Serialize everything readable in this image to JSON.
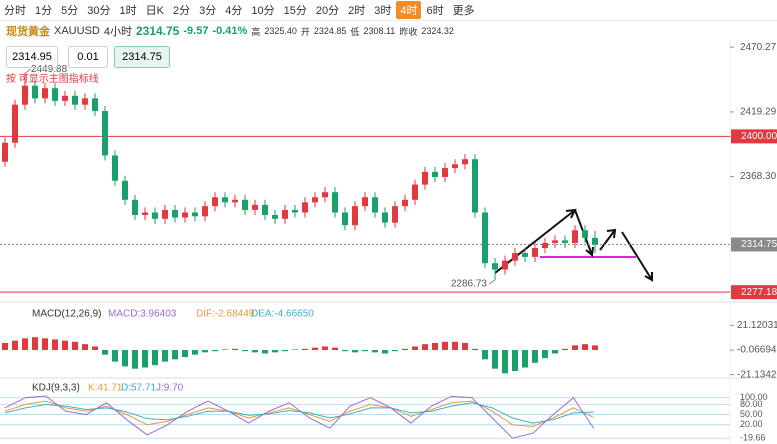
{
  "toolbar": {
    "intervals": [
      "分时",
      "1分",
      "5分",
      "30分",
      "1时",
      "日K",
      "2分",
      "3分",
      "4分",
      "10分",
      "15分",
      "20分",
      "2时",
      "3时",
      "4时",
      "6时",
      "更多"
    ],
    "active": "4时"
  },
  "header": {
    "name": "现货黄金",
    "symbol": "XAUUSD",
    "period": "4小时",
    "price": "2314.75",
    "change": "-9.57",
    "change_pct": "-0.41%",
    "high_label": "高",
    "high": "2325.40",
    "open_label": "开",
    "open": "2324.85",
    "low_label": "低",
    "low": "2308.11",
    "prev_label": "昨收",
    "prev": "2324.32"
  },
  "order": {
    "bid": "2314.95",
    "lot": "0.01",
    "ask": "2314.75"
  },
  "hint": "按 可显示主图指标线",
  "chart_data": {
    "type": "candlestick",
    "up_color": "#e0393e",
    "down_color": "#1aa06a",
    "ylim": [
      2271,
      2476
    ],
    "yticks": [
      2470.27,
      2419.29,
      {
        "value": 2368.3,
        "label": "2368.30"
      }
    ],
    "levels": [
      {
        "value": 2400,
        "label": "2400.00",
        "color": "#e0393e"
      },
      {
        "value": 2277.18,
        "label": "2277.18",
        "color": "#e0393e"
      }
    ],
    "last": {
      "value": 2314.75,
      "label": "2314.75",
      "color": "#8a8a8a"
    },
    "annotations": [
      {
        "value": 2449.88,
        "label": "2449.88"
      },
      {
        "value": 2286.73,
        "label": "2286.73"
      }
    ],
    "candles": [
      [
        2380,
        2399,
        2376,
        2395
      ],
      [
        2395,
        2429,
        2391,
        2425
      ],
      [
        2425,
        2449.88,
        2421,
        2440
      ],
      [
        2440,
        2444,
        2426,
        2430
      ],
      [
        2430,
        2442,
        2426,
        2438
      ],
      [
        2438,
        2442,
        2424,
        2428
      ],
      [
        2428,
        2436,
        2424,
        2432
      ],
      [
        2432,
        2436,
        2421,
        2425
      ],
      [
        2425,
        2434,
        2421,
        2430
      ],
      [
        2430,
        2434,
        2416,
        2420
      ],
      [
        2420,
        2424,
        2381,
        2385
      ],
      [
        2385,
        2389,
        2361,
        2365
      ],
      [
        2365,
        2369,
        2346,
        2350
      ],
      [
        2350,
        2354,
        2334,
        2338
      ],
      [
        2338,
        2344,
        2334,
        2340
      ],
      [
        2340,
        2344,
        2331,
        2335
      ],
      [
        2335,
        2346,
        2331,
        2342
      ],
      [
        2342,
        2346,
        2332,
        2336
      ],
      [
        2336,
        2344,
        2332,
        2340
      ],
      [
        2340,
        2344,
        2333,
        2337
      ],
      [
        2337,
        2349,
        2333,
        2345
      ],
      [
        2345,
        2356,
        2341,
        2352
      ],
      [
        2352,
        2356,
        2344,
        2348
      ],
      [
        2348,
        2354,
        2344,
        2350
      ],
      [
        2350,
        2354,
        2338,
        2342
      ],
      [
        2342,
        2350,
        2338,
        2346
      ],
      [
        2346,
        2350,
        2334,
        2338
      ],
      [
        2338,
        2342,
        2331,
        2335
      ],
      [
        2335,
        2346,
        2331,
        2342
      ],
      [
        2342,
        2346,
        2336,
        2340
      ],
      [
        2340,
        2352,
        2336,
        2348
      ],
      [
        2348,
        2356,
        2344,
        2352
      ],
      [
        2352,
        2360,
        2348,
        2356
      ],
      [
        2356,
        2360,
        2336,
        2340
      ],
      [
        2340,
        2344,
        2326,
        2330
      ],
      [
        2330,
        2349,
        2326,
        2345
      ],
      [
        2345,
        2356,
        2341,
        2352
      ],
      [
        2352,
        2356,
        2336,
        2340
      ],
      [
        2340,
        2344,
        2328,
        2332
      ],
      [
        2332,
        2349,
        2328,
        2345
      ],
      [
        2345,
        2354,
        2341,
        2350
      ],
      [
        2350,
        2366,
        2346,
        2362
      ],
      [
        2362,
        2376,
        2358,
        2372
      ],
      [
        2372,
        2376,
        2364,
        2368
      ],
      [
        2368,
        2379,
        2364,
        2375
      ],
      [
        2375,
        2382,
        2371,
        2378
      ],
      [
        2378,
        2386,
        2374,
        2382
      ],
      [
        2382,
        2386,
        2336,
        2340
      ],
      [
        2340,
        2344,
        2296,
        2300
      ],
      [
        2300,
        2304,
        2286.73,
        2295
      ],
      [
        2295,
        2306,
        2291,
        2302
      ],
      [
        2302,
        2312,
        2298,
        2308
      ],
      [
        2308,
        2312,
        2301,
        2305
      ],
      [
        2305,
        2316,
        2301,
        2312
      ],
      [
        2312,
        2320,
        2308,
        2316
      ],
      [
        2316,
        2322,
        2312,
        2318
      ],
      [
        2318,
        2322,
        2312,
        2316
      ],
      [
        2316,
        2330,
        2312,
        2326
      ],
      [
        2326,
        2330,
        2316,
        2320
      ],
      [
        2320,
        2325.4,
        2308.11,
        2314.75
      ]
    ],
    "macd": {
      "title": "MACD(12,26,9)",
      "macd": "MACD:3.96403",
      "dif": "DIF:-2.68449",
      "dea": "DEA:-4.66650",
      "ylim": [
        -24,
        24
      ],
      "yticks": [
        21.12031,
        -0.06694,
        {
          "value": -21.1342,
          "label": "-21.13420"
        }
      ],
      "hist": [
        6,
        8,
        10,
        11,
        10,
        9,
        8,
        7,
        5,
        3,
        -4,
        -10,
        -14,
        -16,
        -15,
        -13,
        -10,
        -8,
        -6,
        -4,
        -2,
        -1,
        0.5,
        1,
        -1,
        -2,
        -3,
        -2,
        -1,
        0.5,
        1,
        2,
        3,
        2,
        -1,
        -2,
        -1,
        -2,
        -3,
        -1,
        1,
        3,
        5,
        6,
        7,
        7,
        6,
        1,
        -8,
        -16,
        -20,
        -18,
        -15,
        -11,
        -7,
        -3,
        1,
        4,
        5,
        3.96403
      ]
    },
    "kdj": {
      "title": "KDJ(9,3,3)",
      "k_label": "K:41.71",
      "d_label": "D:57.71",
      "j_label": "J:9.70",
      "ylim": [
        -25,
        105
      ],
      "yticks": [
        {
          "value": 100,
          "label": "100.00"
        },
        {
          "value": 80,
          "label": "80.00"
        },
        {
          "value": 50,
          "label": "50.00"
        },
        {
          "value": 20,
          "label": "20.00"
        },
        -19.66
      ],
      "series": [
        {
          "name": "K",
          "color": "#e39a3b",
          "values": [
            60,
            80,
            90,
            70,
            60,
            75,
            50,
            20,
            30,
            50,
            70,
            60,
            40,
            55,
            70,
            50,
            30,
            60,
            80,
            70,
            45,
            65,
            85,
            90,
            60,
            20,
            15,
            40,
            70,
            41.71
          ]
        },
        {
          "name": "D",
          "color": "#3bb0c9",
          "values": [
            55,
            70,
            80,
            75,
            65,
            70,
            58,
            38,
            35,
            45,
            60,
            60,
            48,
            52,
            62,
            55,
            40,
            52,
            70,
            70,
            55,
            60,
            75,
            85,
            70,
            40,
            25,
            35,
            55,
            57.71
          ]
        },
        {
          "name": "J",
          "color": "#9a6ad6",
          "values": [
            70,
            100,
            105,
            60,
            50,
            85,
            35,
            -10,
            20,
            60,
            90,
            60,
            25,
            60,
            85,
            40,
            10,
            75,
            100,
            70,
            25,
            75,
            104,
            100,
            40,
            -19.66,
            -5,
            50,
            100,
            9.7
          ]
        }
      ]
    }
  }
}
